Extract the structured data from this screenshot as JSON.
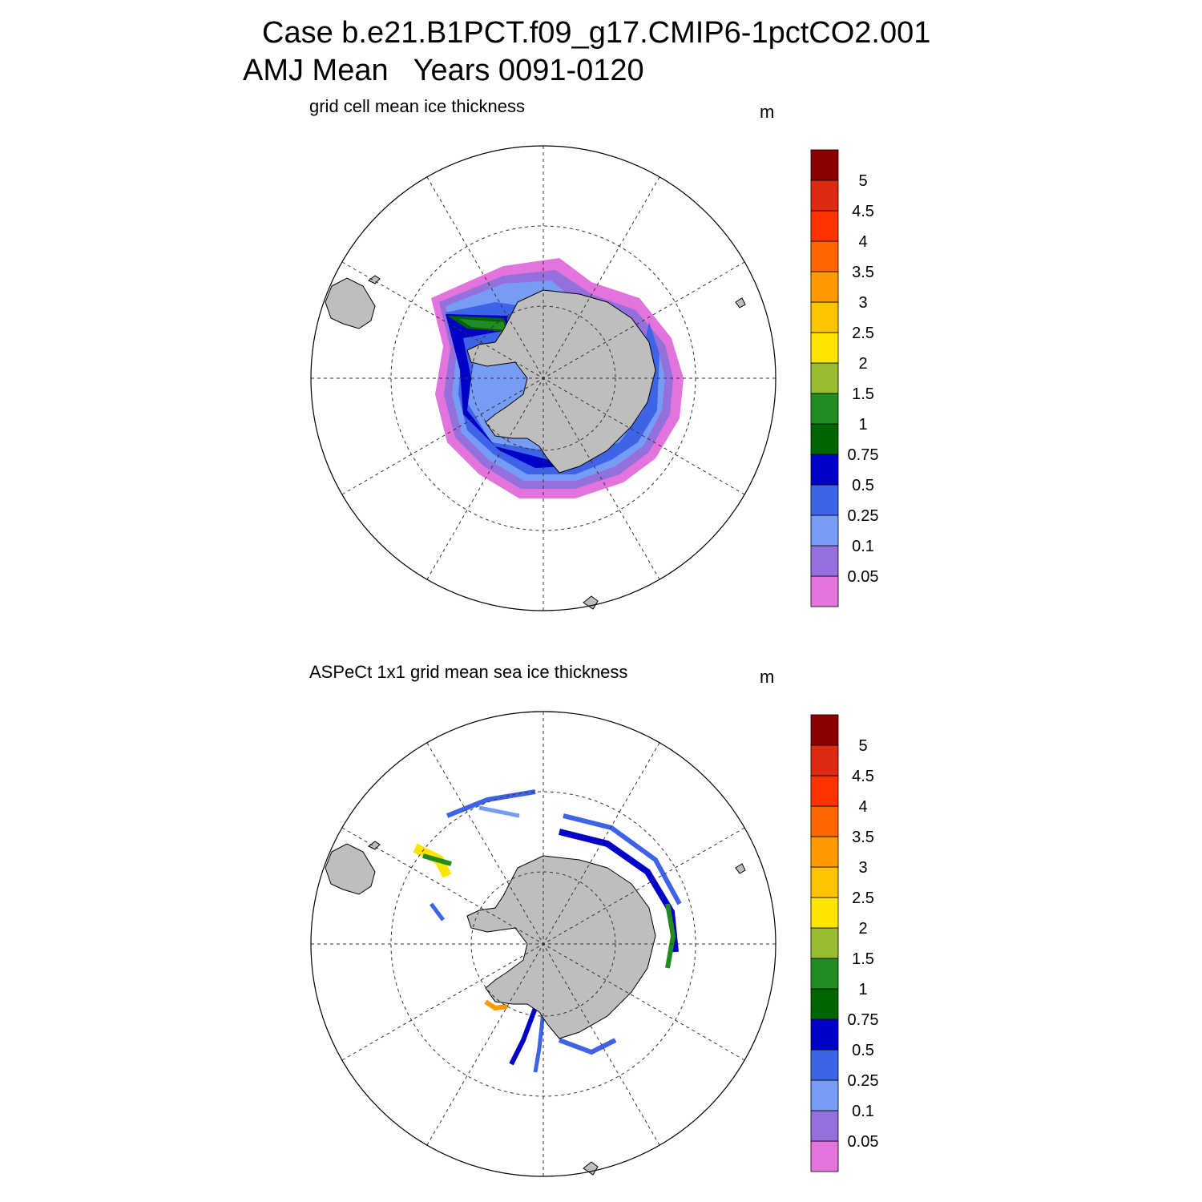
{
  "title": {
    "line1": "Case b.e21.B1PCT.f09_g17.CMIP6-1pctCO2.001",
    "line2": "AMJ Mean   Years 0091-0120"
  },
  "panels": [
    {
      "subtitle": "grid cell mean ice thickness",
      "unit": "m"
    },
    {
      "subtitle": "ASPeCt 1x1 grid mean sea ice thickness",
      "unit": "m"
    }
  ],
  "colorbar": {
    "labels": [
      "0.05",
      "0.1",
      "0.25",
      "0.5",
      "0.75",
      "1",
      "1.5",
      "2",
      "2.5",
      "3",
      "3.5",
      "4",
      "4.5",
      "5"
    ],
    "colors": [
      "#e373dd",
      "#9370db",
      "#779cf5",
      "#3e63e6",
      "#0000c6",
      "#006400",
      "#228b22",
      "#98bb30",
      "#ffe400",
      "#ffc400",
      "#ff9900",
      "#ff6600",
      "#ff3300",
      "#dd2a10",
      "#8b0000"
    ]
  },
  "map_colors": {
    "land": "#bebebe",
    "ocean": "#ffffff",
    "grid": "#333333"
  }
}
